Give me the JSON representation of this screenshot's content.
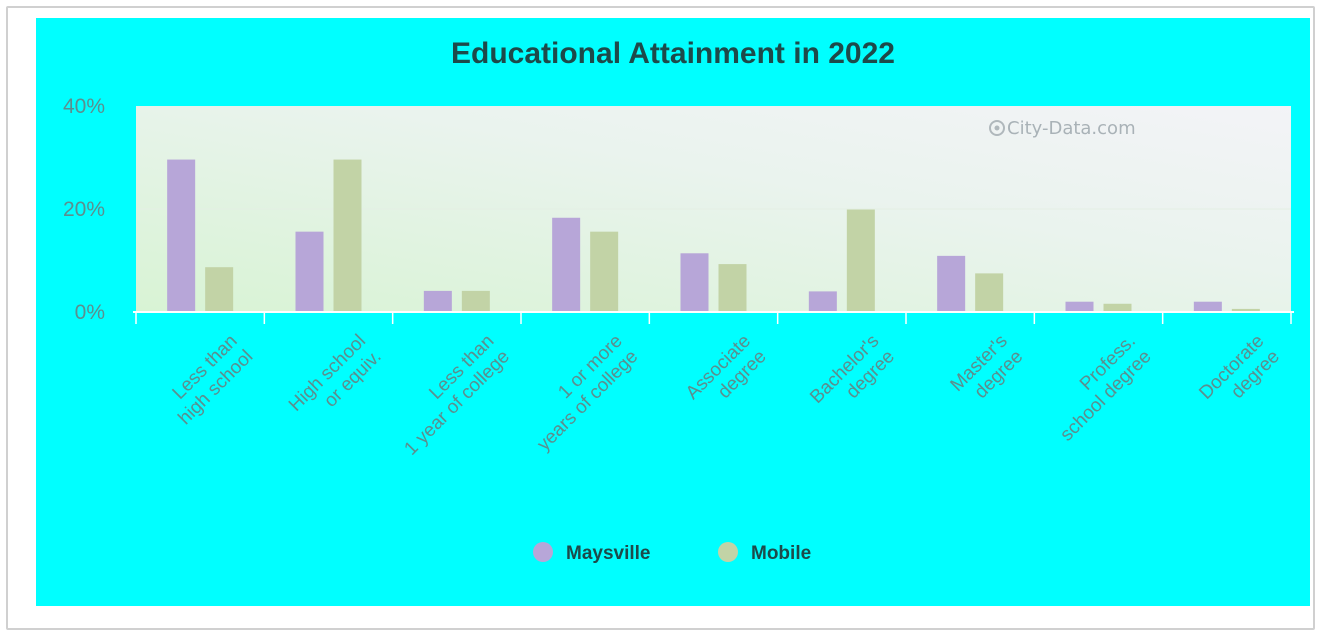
{
  "chart_data": {
    "type": "bar",
    "title": "Educational Attainment in 2022",
    "xlabel": "",
    "ylabel": "",
    "ylim": [
      0,
      40
    ],
    "yticks": [
      "0%",
      "20%",
      "40%"
    ],
    "ytick_values": [
      0,
      20,
      40
    ],
    "categories": [
      [
        "Less than",
        "high school"
      ],
      [
        "High school",
        "or equiv."
      ],
      [
        "Less than",
        "1 year of college"
      ],
      [
        "1 or more",
        "years of college"
      ],
      [
        "Associate",
        "degree"
      ],
      [
        "Bachelor's",
        "degree"
      ],
      [
        "Master's",
        "degree"
      ],
      [
        "Profess.",
        "school degree"
      ],
      [
        "Doctorate",
        "degree"
      ]
    ],
    "series": [
      {
        "name": "Maysville",
        "color": "#b7a6d8",
        "values": [
          29.6,
          15.6,
          4.1,
          18.3,
          11.4,
          4.0,
          10.9,
          2.0,
          2.0
        ]
      },
      {
        "name": "Mobile",
        "color": "#c2d3a6",
        "values": [
          8.7,
          29.6,
          4.1,
          15.6,
          9.3,
          19.9,
          7.5,
          1.6,
          0.6
        ]
      }
    ],
    "legend_position": "bottom",
    "grid": true,
    "watermark": "City-Data.com"
  }
}
